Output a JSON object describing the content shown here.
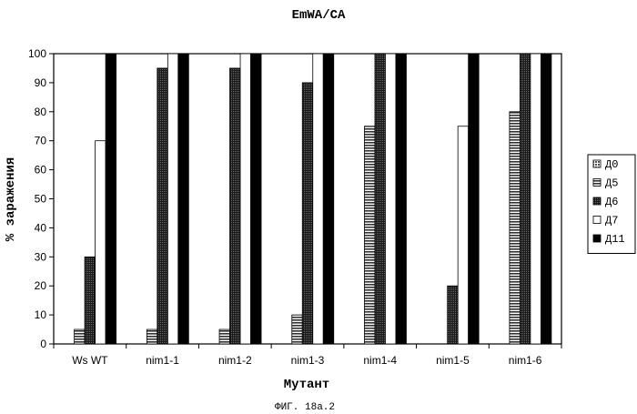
{
  "chart_data": {
    "type": "bar",
    "title": "EmWA/CA",
    "xlabel": "Мутант",
    "ylabel": "% заражения",
    "ylim": [
      0,
      100
    ],
    "yticks": [
      0,
      10,
      20,
      30,
      40,
      50,
      60,
      70,
      80,
      90,
      100
    ],
    "categories": [
      "Ws WT",
      "nim1-1",
      "nim1-2",
      "nim1-3",
      "nim1-4",
      "nim1-5",
      "nim1-6"
    ],
    "series": [
      {
        "name": "Д0",
        "values": [
          0,
          0,
          0,
          0,
          0,
          0,
          0
        ],
        "color": "#777777",
        "pattern": "dots"
      },
      {
        "name": "Д5",
        "values": [
          5,
          5,
          5,
          10,
          75,
          0,
          80
        ],
        "color": "#555555",
        "pattern": "hstripes"
      },
      {
        "name": "Д6",
        "values": [
          30,
          95,
          95,
          90,
          100,
          20,
          100
        ],
        "color": "#222222",
        "pattern": "dense"
      },
      {
        "name": "Д7",
        "values": [
          70,
          100,
          100,
          100,
          100,
          75,
          100
        ],
        "color": "#ffffff",
        "pattern": "none"
      },
      {
        "name": "Д11",
        "values": [
          100,
          100,
          100,
          100,
          100,
          100,
          100
        ],
        "color": "#000000",
        "pattern": "solid"
      }
    ],
    "legend_position": "right",
    "grid": false
  },
  "caption": "ФИГ. 18а.2"
}
